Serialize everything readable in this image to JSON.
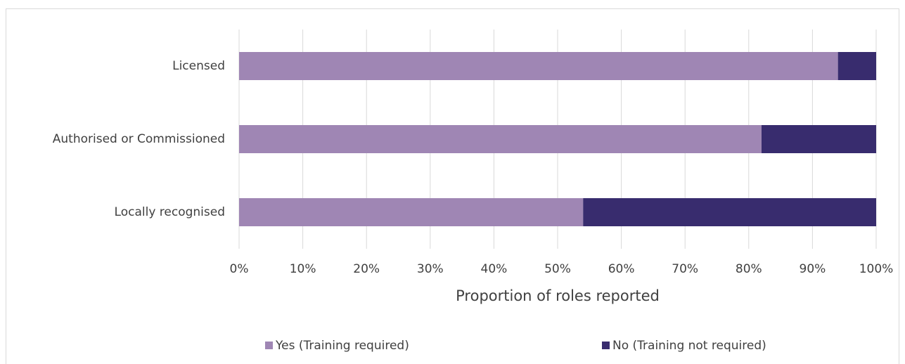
{
  "chart_data": {
    "type": "stacked_bar_horizontal",
    "x_label": "Proportion of roles reported",
    "categories": [
      "Licensed",
      "Authorised or Commissioned",
      "Locally recognised"
    ],
    "series": [
      {
        "name": "Yes (Training required)",
        "color": "#9f86b4",
        "values": [
          94,
          82,
          54
        ]
      },
      {
        "name": "No (Training not required)",
        "color": "#382c6e",
        "values": [
          6,
          18,
          46
        ]
      }
    ],
    "xlim": [
      0,
      100
    ],
    "xticks": [
      {
        "value": 0,
        "label": "0%"
      },
      {
        "value": 10,
        "label": "10%"
      },
      {
        "value": 20,
        "label": "20%"
      },
      {
        "value": 30,
        "label": "30%"
      },
      {
        "value": 40,
        "label": "40%"
      },
      {
        "value": 50,
        "label": "50%"
      },
      {
        "value": 60,
        "label": "60%"
      },
      {
        "value": 70,
        "label": "70%"
      },
      {
        "value": 80,
        "label": "80%"
      },
      {
        "value": 90,
        "label": "90%"
      },
      {
        "value": 100,
        "label": "100%"
      }
    ],
    "grid": true,
    "legend": "bottom"
  }
}
